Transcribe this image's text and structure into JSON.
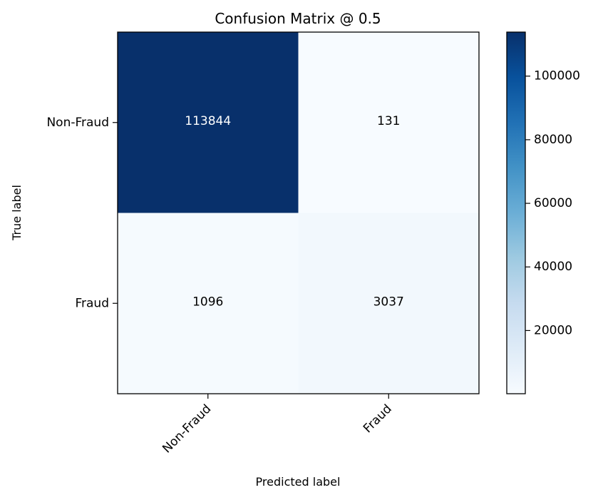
{
  "chart_data": {
    "type": "heatmap",
    "title": "Confusion Matrix @ 0.5",
    "xlabel": "Predicted label",
    "ylabel": "True label",
    "x_categories": [
      "Non-Fraud",
      "Fraud"
    ],
    "y_categories": [
      "Non-Fraud",
      "Fraud"
    ],
    "values": [
      [
        113844,
        131
      ],
      [
        1096,
        3037
      ]
    ],
    "cell_labels": [
      [
        "113844",
        "131"
      ],
      [
        "1096",
        "3037"
      ]
    ],
    "colormap": "Blues",
    "color_range": [
      131,
      113844
    ],
    "colorbar_ticks": [
      20000,
      40000,
      60000,
      80000,
      100000
    ],
    "colorbar_tick_labels": [
      "20000",
      "40000",
      "60000",
      "80000",
      "100000"
    ],
    "grid": false
  }
}
